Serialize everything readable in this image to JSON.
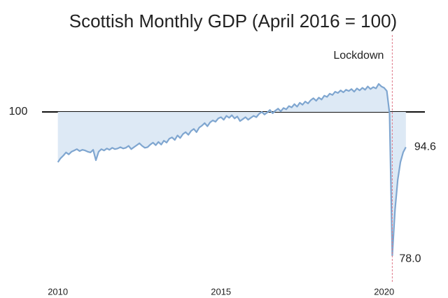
{
  "chart_data": {
    "type": "line",
    "title": "Scottish Monthly GDP (April 2016 = 100)",
    "x": [
      2010,
      2010.083,
      2010.167,
      2010.25,
      2010.333,
      2010.417,
      2010.5,
      2010.583,
      2010.667,
      2010.75,
      2010.833,
      2010.917,
      2011,
      2011.083,
      2011.167,
      2011.25,
      2011.333,
      2011.417,
      2011.5,
      2011.583,
      2011.667,
      2011.75,
      2011.833,
      2011.917,
      2012,
      2012.083,
      2012.167,
      2012.25,
      2012.333,
      2012.417,
      2012.5,
      2012.583,
      2012.667,
      2012.75,
      2012.833,
      2012.917,
      2013,
      2013.083,
      2013.167,
      2013.25,
      2013.333,
      2013.417,
      2013.5,
      2013.583,
      2013.667,
      2013.75,
      2013.833,
      2013.917,
      2014,
      2014.083,
      2014.167,
      2014.25,
      2014.333,
      2014.417,
      2014.5,
      2014.583,
      2014.667,
      2014.75,
      2014.833,
      2014.917,
      2015,
      2015.083,
      2015.167,
      2015.25,
      2015.333,
      2015.417,
      2015.5,
      2015.583,
      2015.667,
      2015.75,
      2015.833,
      2015.917,
      2016,
      2016.083,
      2016.167,
      2016.25,
      2016.333,
      2016.417,
      2016.5,
      2016.583,
      2016.667,
      2016.75,
      2016.833,
      2016.917,
      2017,
      2017.083,
      2017.167,
      2017.25,
      2017.333,
      2017.417,
      2017.5,
      2017.583,
      2017.667,
      2017.75,
      2017.833,
      2017.917,
      2018,
      2018.083,
      2018.167,
      2018.25,
      2018.333,
      2018.417,
      2018.5,
      2018.583,
      2018.667,
      2018.75,
      2018.833,
      2018.917,
      2019,
      2019.083,
      2019.167,
      2019.25,
      2019.333,
      2019.417,
      2019.5,
      2019.583,
      2019.667,
      2019.75,
      2019.833,
      2019.917,
      2020,
      2020.083,
      2020.167,
      2020.25,
      2020.333,
      2020.417,
      2020.5,
      2020.583,
      2020.667
    ],
    "series": [
      {
        "color": "#7fa6d0",
        "area_color": "#dde9f5",
        "values": [
          92.3,
          92.9,
          93.3,
          93.8,
          93.5,
          93.9,
          94.1,
          94.3,
          94.0,
          94.2,
          94.1,
          93.9,
          93.8,
          94.2,
          92.6,
          93.9,
          94.3,
          94.1,
          94.4,
          94.2,
          94.5,
          94.3,
          94.4,
          94.6,
          94.4,
          94.5,
          94.8,
          94.3,
          94.6,
          94.9,
          95.2,
          94.8,
          94.5,
          94.6,
          95.0,
          95.3,
          94.9,
          95.4,
          95.0,
          95.6,
          95.3,
          95.9,
          96.1,
          95.7,
          96.4,
          96.0,
          96.6,
          96.9,
          96.5,
          97.1,
          97.4,
          96.9,
          97.6,
          97.9,
          98.3,
          97.8,
          98.4,
          98.7,
          98.5,
          99.0,
          99.2,
          98.8,
          99.4,
          99.1,
          99.5,
          99.0,
          99.3,
          98.6,
          98.9,
          99.2,
          98.8,
          99.1,
          99.4,
          99.2,
          99.7,
          100.0,
          99.6,
          99.9,
          100.3,
          99.8,
          100.2,
          100.5,
          100.1,
          100.6,
          100.4,
          100.9,
          100.7,
          101.2,
          100.8,
          101.4,
          101.1,
          101.6,
          101.3,
          101.8,
          102.1,
          101.7,
          102.2,
          101.9,
          102.5,
          102.3,
          102.8,
          102.6,
          103.1,
          102.9,
          103.3,
          103.0,
          103.4,
          103.2,
          103.5,
          103.1,
          103.6,
          103.3,
          103.7,
          103.4,
          103.9,
          103.5,
          103.8,
          103.6,
          104.3,
          103.9,
          103.7,
          103.2,
          99.8,
          78.0,
          85.0,
          89.6,
          92.3,
          93.8,
          94.6
        ],
        "value_labels": [
          null,
          null,
          null,
          null,
          null,
          null,
          null,
          null,
          null,
          null,
          null,
          null,
          null,
          null,
          null,
          null,
          null,
          null,
          null,
          null,
          null,
          null,
          null,
          null,
          null,
          null,
          null,
          null,
          null,
          null,
          null,
          null,
          null,
          null,
          null,
          null,
          null,
          null,
          null,
          null,
          null,
          null,
          null,
          null,
          null,
          null,
          null,
          null,
          null,
          null,
          null,
          null,
          null,
          null,
          null,
          null,
          null,
          null,
          null,
          null,
          null,
          null,
          null,
          null,
          null,
          null,
          null,
          null,
          null,
          null,
          null,
          null,
          null,
          null,
          null,
          null,
          null,
          null,
          null,
          null,
          null,
          null,
          null,
          null,
          null,
          null,
          null,
          null,
          null,
          null,
          null,
          null,
          null,
          null,
          null,
          null,
          null,
          null,
          null,
          null,
          null,
          null,
          null,
          null,
          null,
          null,
          null,
          null,
          null,
          null,
          null,
          null,
          null,
          null,
          null,
          null,
          null,
          null,
          null,
          null,
          null,
          null,
          null,
          "78.0",
          null,
          null,
          null,
          null,
          "94.6"
        ]
      }
    ],
    "reference_line": 100,
    "annotations": [
      {
        "text": "Lockdown",
        "x": 2020.25
      }
    ],
    "xlim": [
      2009.75,
      2021.25
    ],
    "xticks": [
      2010,
      2015,
      2020
    ],
    "ylim": [
      76,
      106
    ],
    "yticks": [
      100
    ]
  }
}
